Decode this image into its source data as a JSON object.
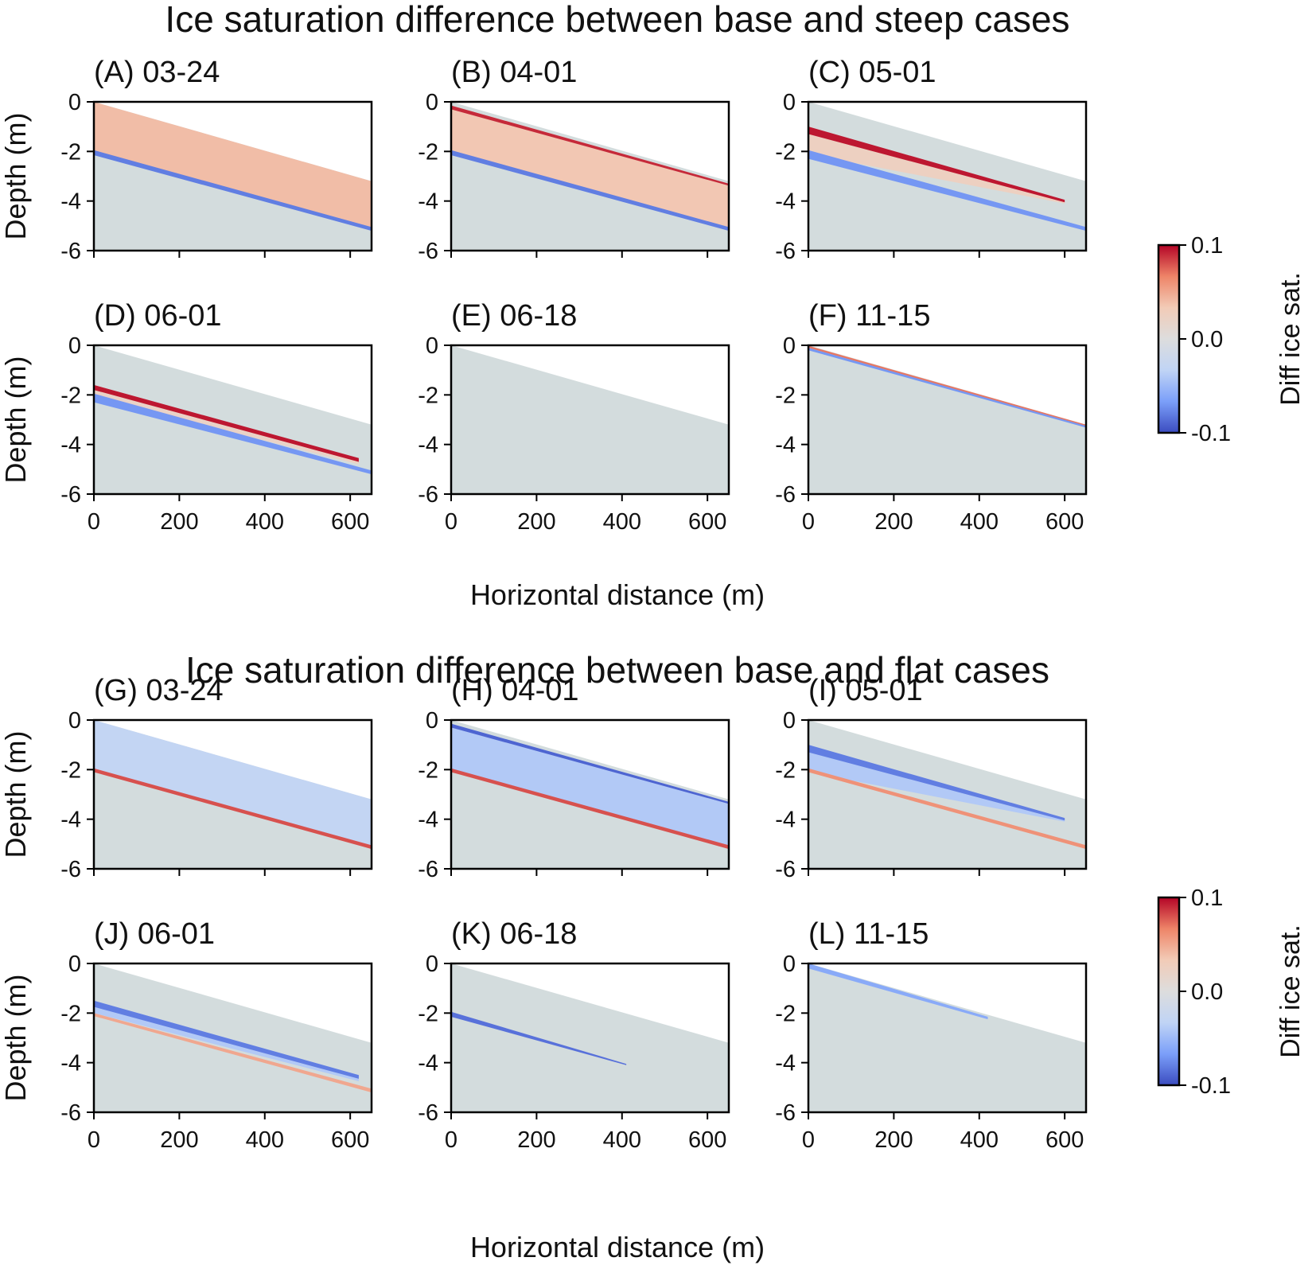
{
  "chart_data": {
    "type": "heatmap",
    "colormap": {
      "name": "coolwarm",
      "stops": [
        "#3b4cc0",
        "#7b9ff9",
        "#c0d4f5",
        "#dddddd",
        "#f2cbb7",
        "#ee8468",
        "#b40426"
      ],
      "background": "#d3dcdd"
    },
    "xlim": [
      0,
      650
    ],
    "ylim": [
      -6,
      0
    ],
    "xticks": [
      0,
      200,
      400,
      600
    ],
    "yticks": [
      0,
      -2,
      -4,
      -6
    ],
    "xtick_labels": [
      "0",
      "200",
      "400",
      "600"
    ],
    "ytick_labels": [
      "0",
      "-2",
      "-4",
      "-6"
    ],
    "slope_profile": {
      "ground_surface": [
        [
          0,
          0
        ],
        [
          650,
          -3.2
        ]
      ],
      "layer_thickness_m": 2
    },
    "sections": [
      {
        "title": "Ice saturation difference between base and steep cases",
        "xlabel": "Horizontal distance (m)",
        "ylabel": "Depth (m)",
        "colorbar": {
          "label": "Diff ice sat.",
          "min": -0.1,
          "max": 0.1,
          "tick_labels": [
            "0.1",
            "0.0",
            "-0.1"
          ]
        },
        "panels": [
          {
            "title": "(A) 03-24",
            "bands": [
              {
                "x": [
                  0,
                  650
                ],
                "top": [
                  0,
                  -3.2
                ],
                "bottom": [
                  -2.0,
                  -5.2
                ],
                "value": 0.04
              },
              {
                "x": [
                  0,
                  650
                ],
                "top": [
                  -1.95,
                  -5.05
                ],
                "bottom": [
                  -2.15,
                  -5.2
                ],
                "value": -0.08
              }
            ]
          },
          {
            "title": "(B) 04-01",
            "bands": [
              {
                "x": [
                  0,
                  650
                ],
                "top": [
                  -0.15,
                  -3.3
                ],
                "bottom": [
                  -2.0,
                  -5.2
                ],
                "value": 0.035
              },
              {
                "x": [
                  0,
                  650
                ],
                "top": [
                  -0.15,
                  -3.3
                ],
                "bottom": [
                  -0.3,
                  -3.38
                ],
                "value": 0.09
              },
              {
                "x": [
                  0,
                  650
                ],
                "top": [
                  -1.95,
                  -5.05
                ],
                "bottom": [
                  -2.15,
                  -5.2
                ],
                "value": -0.08
              }
            ]
          },
          {
            "title": "(C) 05-01",
            "bands": [
              {
                "x": [
                  0,
                  600
                ],
                "top": [
                  -1.0,
                  -4.0
                ],
                "bottom": [
                  -2.1,
                  -4.1
                ],
                "value": 0.025
              },
              {
                "x": [
                  0,
                  600
                ],
                "top": [
                  -1.0,
                  -3.95
                ],
                "bottom": [
                  -1.3,
                  -4.05
                ],
                "value": 0.095
              },
              {
                "x": [
                  0,
                  650
                ],
                "top": [
                  -1.95,
                  -5.05
                ],
                "bottom": [
                  -2.3,
                  -5.2
                ],
                "value": -0.07
              }
            ]
          },
          {
            "title": "(D) 06-01",
            "bands": [
              {
                "x": [
                  0,
                  620
                ],
                "top": [
                  -1.6,
                  -4.6
                ],
                "bottom": [
                  -2.1,
                  -4.8
                ],
                "value": 0.02
              },
              {
                "x": [
                  0,
                  620
                ],
                "top": [
                  -1.6,
                  -4.55
                ],
                "bottom": [
                  -1.8,
                  -4.7
                ],
                "value": 0.095
              },
              {
                "x": [
                  0,
                  650
                ],
                "top": [
                  -1.95,
                  -5.05
                ],
                "bottom": [
                  -2.3,
                  -5.2
                ],
                "value": -0.07
              }
            ]
          },
          {
            "title": "(E) 06-18",
            "bands": []
          },
          {
            "title": "(F) 11-15",
            "bands": [
              {
                "x": [
                  0,
                  650
                ],
                "top": [
                  -0.02,
                  -3.2
                ],
                "bottom": [
                  -0.1,
                  -3.27
                ],
                "value": 0.07
              },
              {
                "x": [
                  0,
                  650
                ],
                "top": [
                  -0.1,
                  -3.25
                ],
                "bottom": [
                  -0.2,
                  -3.32
                ],
                "value": -0.07
              }
            ]
          }
        ]
      },
      {
        "title": "Ice saturation difference between base and flat cases",
        "xlabel": "Horizontal distance (m)",
        "ylabel": "Depth (m)",
        "colorbar": {
          "label": "Diff ice sat.",
          "min": -0.1,
          "max": 0.1,
          "tick_labels": [
            "0.1",
            "0.0",
            "-0.1"
          ]
        },
        "panels": [
          {
            "title": "(G) 03-24",
            "bands": [
              {
                "x": [
                  0,
                  650
                ],
                "top": [
                  0,
                  -3.2
                ],
                "bottom": [
                  -2.0,
                  -5.2
                ],
                "value": -0.03
              },
              {
                "x": [
                  0,
                  650
                ],
                "top": [
                  -1.95,
                  -5.05
                ],
                "bottom": [
                  -2.1,
                  -5.2
                ],
                "value": 0.08
              }
            ]
          },
          {
            "title": "(H) 04-01",
            "bands": [
              {
                "x": [
                  0,
                  650
                ],
                "top": [
                  -0.15,
                  -3.3
                ],
                "bottom": [
                  -2.0,
                  -5.2
                ],
                "value": -0.04
              },
              {
                "x": [
                  0,
                  650
                ],
                "top": [
                  -0.15,
                  -3.3
                ],
                "bottom": [
                  -0.3,
                  -3.38
                ],
                "value": -0.09
              },
              {
                "x": [
                  0,
                  650
                ],
                "top": [
                  -1.95,
                  -5.05
                ],
                "bottom": [
                  -2.1,
                  -5.2
                ],
                "value": 0.08
              }
            ]
          },
          {
            "title": "(I) 05-01",
            "bands": [
              {
                "x": [
                  0,
                  600
                ],
                "top": [
                  -1.0,
                  -4.0
                ],
                "bottom": [
                  -2.1,
                  -4.1
                ],
                "value": -0.04
              },
              {
                "x": [
                  0,
                  600
                ],
                "top": [
                  -1.0,
                  -3.95
                ],
                "bottom": [
                  -1.3,
                  -4.05
                ],
                "value": -0.08
              },
              {
                "x": [
                  0,
                  650
                ],
                "top": [
                  -1.95,
                  -5.05
                ],
                "bottom": [
                  -2.1,
                  -5.2
                ],
                "value": 0.06
              }
            ]
          },
          {
            "title": "(J) 06-01",
            "bands": [
              {
                "x": [
                  0,
                  620
                ],
                "top": [
                  -1.5,
                  -4.5
                ],
                "bottom": [
                  -2.0,
                  -4.75
                ],
                "value": -0.04
              },
              {
                "x": [
                  0,
                  620
                ],
                "top": [
                  -1.5,
                  -4.5
                ],
                "bottom": [
                  -1.75,
                  -4.65
                ],
                "value": -0.08
              },
              {
                "x": [
                  0,
                  650
                ],
                "top": [
                  -2.0,
                  -5.05
                ],
                "bottom": [
                  -2.12,
                  -5.2
                ],
                "value": 0.05
              }
            ]
          },
          {
            "title": "(K) 06-18",
            "bands": [
              {
                "x": [
                  0,
                  410
                ],
                "top": [
                  -1.95,
                  -4.05
                ],
                "bottom": [
                  -2.15,
                  -4.1
                ],
                "value": -0.085
              }
            ]
          },
          {
            "title": "(L) 11-15",
            "bands": [
              {
                "x": [
                  0,
                  420
                ],
                "top": [
                  0,
                  -2.15
                ],
                "bottom": [
                  -0.2,
                  -2.25
                ],
                "value": -0.06
              }
            ]
          }
        ]
      }
    ]
  }
}
